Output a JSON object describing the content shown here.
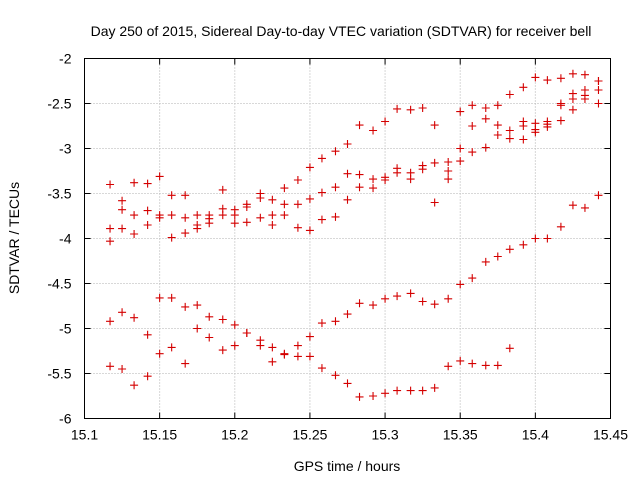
{
  "chart_data": {
    "type": "scatter",
    "title": "Day 250 of 2015, Sidereal Day-to-day VTEC variation (SDTVAR) for receiver bell",
    "xlabel": "GPS time / hours",
    "ylabel": "SDTVAR / TECUs",
    "xlim": [
      15.1,
      15.45
    ],
    "ylim": [
      -6,
      -2
    ],
    "xticks": [
      "15.1",
      "15.15",
      "15.2",
      "15.25",
      "15.3",
      "15.35",
      "15.4",
      "15.45"
    ],
    "yticks": [
      "-2",
      "-2.5",
      "-3",
      "-3.5",
      "-4",
      "-4.5",
      "-5",
      "-5.5",
      "-6"
    ],
    "grid": true,
    "marker": "+",
    "color": "#d40000",
    "points": [
      [
        15.117,
        -3.4
      ],
      [
        15.117,
        -3.89
      ],
      [
        15.117,
        -4.03
      ],
      [
        15.117,
        -4.92
      ],
      [
        15.117,
        -5.42
      ],
      [
        15.125,
        -3.58
      ],
      [
        15.125,
        -3.68
      ],
      [
        15.125,
        -3.89
      ],
      [
        15.125,
        -4.82
      ],
      [
        15.125,
        -5.45
      ],
      [
        15.133,
        -3.38
      ],
      [
        15.133,
        -3.74
      ],
      [
        15.133,
        -3.95
      ],
      [
        15.133,
        -4.88
      ],
      [
        15.133,
        -5.63
      ],
      [
        15.142,
        -3.39
      ],
      [
        15.142,
        -3.69
      ],
      [
        15.142,
        -3.85
      ],
      [
        15.142,
        -5.07
      ],
      [
        15.142,
        -5.53
      ],
      [
        15.15,
        -3.31
      ],
      [
        15.15,
        -3.74
      ],
      [
        15.15,
        -3.77
      ],
      [
        15.15,
        -4.66
      ],
      [
        15.15,
        -5.28
      ],
      [
        15.158,
        -3.52
      ],
      [
        15.158,
        -3.74
      ],
      [
        15.158,
        -3.99
      ],
      [
        15.158,
        -4.66
      ],
      [
        15.158,
        -5.21
      ],
      [
        15.167,
        -3.52
      ],
      [
        15.167,
        -3.77
      ],
      [
        15.167,
        -3.94
      ],
      [
        15.167,
        -4.76
      ],
      [
        15.167,
        -5.39
      ],
      [
        15.175,
        -3.74
      ],
      [
        15.175,
        -3.85
      ],
      [
        15.175,
        -3.89
      ],
      [
        15.175,
        -4.74
      ],
      [
        15.175,
        -5.0
      ],
      [
        15.183,
        -3.74
      ],
      [
        15.183,
        -3.78
      ],
      [
        15.183,
        -3.83
      ],
      [
        15.183,
        -4.87
      ],
      [
        15.183,
        -5.1
      ],
      [
        15.192,
        -3.46
      ],
      [
        15.192,
        -3.67
      ],
      [
        15.192,
        -3.74
      ],
      [
        15.192,
        -4.9
      ],
      [
        15.192,
        -5.24
      ],
      [
        15.2,
        -3.68
      ],
      [
        15.2,
        -3.74
      ],
      [
        15.2,
        -3.83
      ],
      [
        15.2,
        -4.96
      ],
      [
        15.2,
        -5.19
      ],
      [
        15.208,
        -3.62
      ],
      [
        15.208,
        -3.65
      ],
      [
        15.208,
        -3.82
      ],
      [
        15.208,
        -5.05
      ],
      [
        15.208,
        -5.05
      ],
      [
        15.217,
        -3.5
      ],
      [
        15.217,
        -3.55
      ],
      [
        15.217,
        -3.77
      ],
      [
        15.217,
        -5.13
      ],
      [
        15.217,
        -5.19
      ],
      [
        15.225,
        -3.57
      ],
      [
        15.225,
        -3.74
      ],
      [
        15.225,
        -3.85
      ],
      [
        15.225,
        -5.21
      ],
      [
        15.225,
        -5.37
      ],
      [
        15.233,
        -3.44
      ],
      [
        15.233,
        -3.62
      ],
      [
        15.233,
        -3.74
      ],
      [
        15.233,
        -5.29
      ],
      [
        15.233,
        -5.28
      ],
      [
        15.242,
        -3.35
      ],
      [
        15.242,
        -3.62
      ],
      [
        15.242,
        -3.88
      ],
      [
        15.242,
        -5.19
      ],
      [
        15.242,
        -5.31
      ],
      [
        15.25,
        -3.21
      ],
      [
        15.25,
        -3.56
      ],
      [
        15.25,
        -3.91
      ],
      [
        15.25,
        -5.09
      ],
      [
        15.25,
        -5.31
      ],
      [
        15.258,
        -3.11
      ],
      [
        15.258,
        -3.49
      ],
      [
        15.258,
        -3.79
      ],
      [
        15.258,
        -4.94
      ],
      [
        15.258,
        -5.44
      ],
      [
        15.267,
        -3.03
      ],
      [
        15.267,
        -3.43
      ],
      [
        15.267,
        -3.76
      ],
      [
        15.267,
        -4.92
      ],
      [
        15.267,
        -5.52
      ],
      [
        15.275,
        -2.95
      ],
      [
        15.275,
        -3.28
      ],
      [
        15.275,
        -3.57
      ],
      [
        15.275,
        -4.84
      ],
      [
        15.275,
        -5.61
      ],
      [
        15.283,
        -2.74
      ],
      [
        15.283,
        -3.29
      ],
      [
        15.283,
        -3.43
      ],
      [
        15.283,
        -4.72
      ],
      [
        15.283,
        -5.76
      ],
      [
        15.292,
        -2.8
      ],
      [
        15.292,
        -3.34
      ],
      [
        15.292,
        -3.44
      ],
      [
        15.292,
        -4.74
      ],
      [
        15.292,
        -5.75
      ],
      [
        15.3,
        -2.7
      ],
      [
        15.3,
        -3.32
      ],
      [
        15.3,
        -3.35
      ],
      [
        15.3,
        -4.67
      ],
      [
        15.3,
        -5.72
      ],
      [
        15.308,
        -2.56
      ],
      [
        15.308,
        -3.22
      ],
      [
        15.308,
        -3.27
      ],
      [
        15.308,
        -4.64
      ],
      [
        15.308,
        -5.69
      ],
      [
        15.317,
        -2.57
      ],
      [
        15.317,
        -3.27
      ],
      [
        15.317,
        -3.34
      ],
      [
        15.317,
        -4.61
      ],
      [
        15.317,
        -5.69
      ],
      [
        15.325,
        -2.55
      ],
      [
        15.325,
        -3.19
      ],
      [
        15.325,
        -3.23
      ],
      [
        15.325,
        -4.7
      ],
      [
        15.325,
        -5.69
      ],
      [
        15.333,
        -2.74
      ],
      [
        15.333,
        -3.16
      ],
      [
        15.333,
        -3.6
      ],
      [
        15.333,
        -4.73
      ],
      [
        15.333,
        -5.66
      ],
      [
        15.342,
        -3.15
      ],
      [
        15.342,
        -3.25
      ],
      [
        15.342,
        -3.34
      ],
      [
        15.342,
        -4.67
      ],
      [
        15.342,
        -5.42
      ],
      [
        15.35,
        -2.59
      ],
      [
        15.35,
        -3.0
      ],
      [
        15.35,
        -3.14
      ],
      [
        15.35,
        -4.51
      ],
      [
        15.35,
        -5.36
      ],
      [
        15.358,
        -2.52
      ],
      [
        15.358,
        -2.75
      ],
      [
        15.358,
        -3.04
      ],
      [
        15.358,
        -4.44
      ],
      [
        15.358,
        -5.39
      ],
      [
        15.367,
        -2.55
      ],
      [
        15.367,
        -2.67
      ],
      [
        15.367,
        -2.99
      ],
      [
        15.367,
        -4.26
      ],
      [
        15.367,
        -5.41
      ],
      [
        15.375,
        -2.52
      ],
      [
        15.375,
        -2.74
      ],
      [
        15.375,
        -2.85
      ],
      [
        15.375,
        -4.2
      ],
      [
        15.375,
        -5.41
      ],
      [
        15.383,
        -2.4
      ],
      [
        15.383,
        -2.8
      ],
      [
        15.383,
        -2.89
      ],
      [
        15.383,
        -4.12
      ],
      [
        15.383,
        -5.22
      ],
      [
        15.392,
        -2.32
      ],
      [
        15.392,
        -2.7
      ],
      [
        15.392,
        -2.75
      ],
      [
        15.392,
        -2.9
      ],
      [
        15.392,
        -4.07
      ],
      [
        15.4,
        -2.21
      ],
      [
        15.4,
        -2.72
      ],
      [
        15.4,
        -2.79
      ],
      [
        15.4,
        -2.82
      ],
      [
        15.4,
        -4.0
      ],
      [
        15.408,
        -2.24
      ],
      [
        15.408,
        -2.7
      ],
      [
        15.408,
        -2.73
      ],
      [
        15.408,
        -2.76
      ],
      [
        15.408,
        -4.0
      ],
      [
        15.417,
        -2.22
      ],
      [
        15.417,
        -2.5
      ],
      [
        15.417,
        -2.52
      ],
      [
        15.417,
        -2.69
      ],
      [
        15.417,
        -3.87
      ],
      [
        15.425,
        -2.17
      ],
      [
        15.425,
        -2.39
      ],
      [
        15.425,
        -2.45
      ],
      [
        15.425,
        -2.57
      ],
      [
        15.425,
        -3.63
      ],
      [
        15.433,
        -2.18
      ],
      [
        15.433,
        -2.35
      ],
      [
        15.433,
        -2.41
      ],
      [
        15.433,
        -2.45
      ],
      [
        15.433,
        -3.66
      ],
      [
        15.442,
        -2.25
      ],
      [
        15.442,
        -2.25
      ],
      [
        15.442,
        -2.35
      ],
      [
        15.442,
        -2.5
      ],
      [
        15.442,
        -3.52
      ]
    ]
  }
}
